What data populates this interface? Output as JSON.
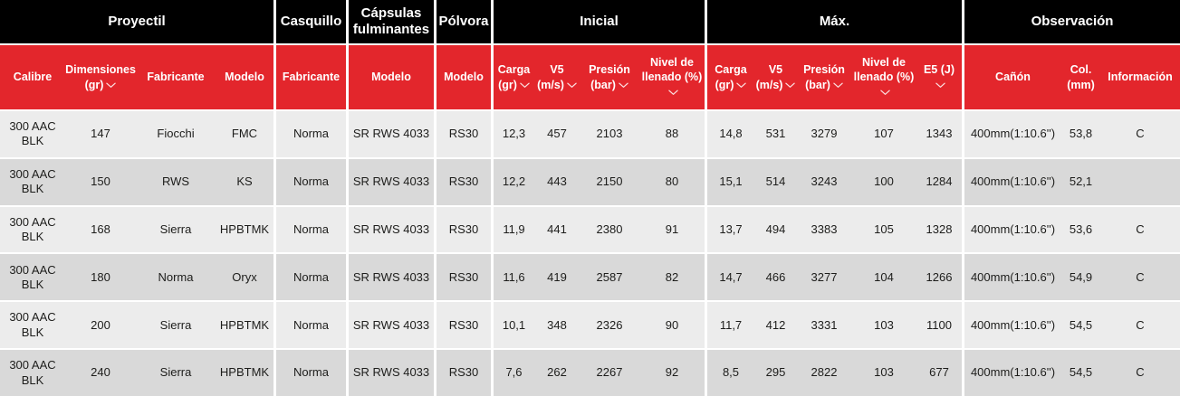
{
  "colors": {
    "accent_red": "#e3262c",
    "header_black": "#000000",
    "row_light": "#ececec",
    "row_dark": "#d9d9d9",
    "gutter_white": "#ffffff"
  },
  "table": {
    "header_groups": [
      {
        "label": "Proyectil",
        "span": 4
      },
      {
        "label": "Casquillo",
        "span": 1
      },
      {
        "label": "Cápsulas fulminantes",
        "span": 1
      },
      {
        "label": "Pólvora",
        "span": 1
      },
      {
        "label": "Inicial",
        "span": 4
      },
      {
        "label": "Máx.",
        "span": 5
      },
      {
        "label": "Observación",
        "span": 3
      }
    ],
    "columns": [
      {
        "key": "calibre",
        "label": "Calibre",
        "sortable": false
      },
      {
        "key": "dimensiones-gr",
        "label": "Dimensiones (gr)",
        "sortable": true
      },
      {
        "key": "fabricante-proyectil",
        "label": "Fabricante",
        "sortable": false
      },
      {
        "key": "modelo-proyectil",
        "label": "Modelo",
        "sortable": false
      },
      {
        "key": "fabricante-casquillo",
        "label": "Fabricante",
        "sortable": false
      },
      {
        "key": "modelo-capsulas",
        "label": "Modelo",
        "sortable": false
      },
      {
        "key": "modelo-polvora",
        "label": "Modelo",
        "sortable": false
      },
      {
        "key": "carga-gr-inicial",
        "label": "Carga (gr)",
        "sortable": true
      },
      {
        "key": "v5-ms-inicial",
        "label": "V5 (m/s)",
        "sortable": true
      },
      {
        "key": "presion-bar-inicial",
        "label": "Presión (bar)",
        "sortable": true
      },
      {
        "key": "nivel-llenado-inicial",
        "label": "Nivel de llenado (%)",
        "sortable": true
      },
      {
        "key": "carga-gr-max",
        "label": "Carga (gr)",
        "sortable": true
      },
      {
        "key": "v5-ms-max",
        "label": "V5 (m/s)",
        "sortable": true
      },
      {
        "key": "presion-bar-max",
        "label": "Presión (bar)",
        "sortable": true
      },
      {
        "key": "nivel-llenado-max",
        "label": "Nivel de llenado (%)",
        "sortable": true
      },
      {
        "key": "e5-j",
        "label": "E5 (J)",
        "sortable": true
      },
      {
        "key": "canon",
        "label": "Cañón",
        "sortable": false
      },
      {
        "key": "col-mm",
        "label": "Col. (mm)",
        "sortable": false
      },
      {
        "key": "informacion",
        "label": "Información",
        "sortable": false
      }
    ],
    "rows": [
      [
        "300 AAC BLK",
        "147",
        "Fiocchi",
        "FMC",
        "Norma",
        "SR RWS 4033",
        "RS30",
        "12,3",
        "457",
        "2103",
        "88",
        "14,8",
        "531",
        "3279",
        "107",
        "1343",
        "400mm(1:10.6'')",
        "53,8",
        "C"
      ],
      [
        "300 AAC BLK",
        "150",
        "RWS",
        "KS",
        "Norma",
        "SR RWS 4033",
        "RS30",
        "12,2",
        "443",
        "2150",
        "80",
        "15,1",
        "514",
        "3243",
        "100",
        "1284",
        "400mm(1:10.6'')",
        "52,1",
        ""
      ],
      [
        "300 AAC BLK",
        "168",
        "Sierra",
        "HPBTMK",
        "Norma",
        "SR RWS 4033",
        "RS30",
        "11,9",
        "441",
        "2380",
        "91",
        "13,7",
        "494",
        "3383",
        "105",
        "1328",
        "400mm(1:10.6'')",
        "53,6",
        "C"
      ],
      [
        "300 AAC BLK",
        "180",
        "Norma",
        "Oryx",
        "Norma",
        "SR RWS 4033",
        "RS30",
        "11,6",
        "419",
        "2587",
        "82",
        "14,7",
        "466",
        "3277",
        "104",
        "1266",
        "400mm(1:10.6'')",
        "54,9",
        "C"
      ],
      [
        "300 AAC BLK",
        "200",
        "Sierra",
        "HPBTMK",
        "Norma",
        "SR RWS 4033",
        "RS30",
        "10,1",
        "348",
        "2326",
        "90",
        "11,7",
        "412",
        "3331",
        "103",
        "1100",
        "400mm(1:10.6'')",
        "54,5",
        "C"
      ],
      [
        "300 AAC BLK",
        "240",
        "Sierra",
        "HPBTMK",
        "Norma",
        "SR RWS 4033",
        "RS30",
        "7,6",
        "262",
        "2267",
        "92",
        "8,5",
        "295",
        "2822",
        "103",
        "677",
        "400mm(1:10.6'')",
        "54,5",
        "C"
      ]
    ]
  }
}
